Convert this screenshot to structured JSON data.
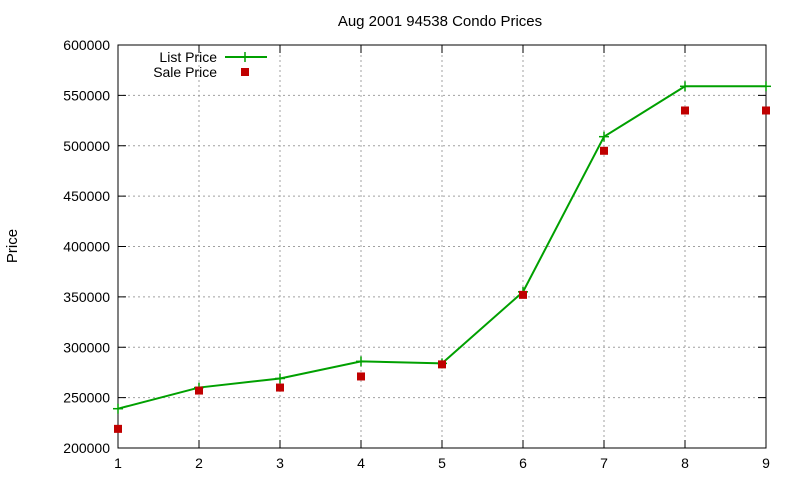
{
  "chart_data": {
    "type": "line",
    "title": "Aug 2001 94538 Condo Prices",
    "xlabel": "",
    "ylabel": "Price",
    "x": [
      1,
      2,
      3,
      4,
      5,
      6,
      7,
      8,
      9
    ],
    "xlim": [
      1,
      9
    ],
    "ylim": [
      200000,
      600000
    ],
    "xticks": [
      1,
      2,
      3,
      4,
      5,
      6,
      7,
      8,
      9
    ],
    "yticks": [
      200000,
      250000,
      300000,
      350000,
      400000,
      450000,
      500000,
      550000,
      600000
    ],
    "grid": true,
    "legend_position": "top-left",
    "series": [
      {
        "name": "List Price",
        "style": "line-with-plus-markers",
        "color": "#00a000",
        "values": [
          239000,
          260000,
          269000,
          286000,
          284000,
          355000,
          509000,
          559000,
          559000
        ]
      },
      {
        "name": "Sale Price",
        "style": "square-markers",
        "color": "#c00000",
        "values": [
          219000,
          257000,
          260000,
          271000,
          283000,
          352000,
          495000,
          535000,
          535000
        ]
      }
    ]
  }
}
